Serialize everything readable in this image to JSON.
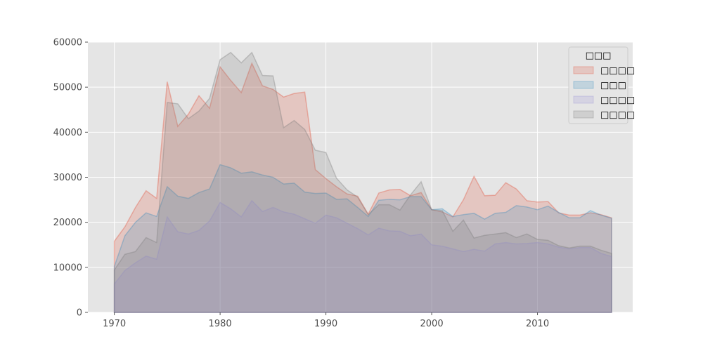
{
  "chart_data": {
    "type": "area",
    "title": "",
    "xlabel": "",
    "ylabel": "",
    "xlim": [
      1967.5,
      2019.0
    ],
    "ylim": [
      0,
      60000
    ],
    "x_ticks": [
      1970,
      1980,
      1990,
      2000,
      2010
    ],
    "y_ticks": [
      0,
      10000,
      20000,
      30000,
      40000,
      50000,
      60000
    ],
    "grid": true,
    "legend": {
      "title": "□□□",
      "position": "top-right"
    },
    "x": [
      1970,
      1971,
      1972,
      1973,
      1974,
      1975,
      1976,
      1977,
      1978,
      1979,
      1980,
      1981,
      1982,
      1983,
      1984,
      1985,
      1986,
      1987,
      1988,
      1989,
      1990,
      1991,
      1992,
      1993,
      1994,
      1995,
      1996,
      1997,
      1998,
      1999,
      2000,
      2001,
      2002,
      2003,
      2004,
      2005,
      2006,
      2007,
      2008,
      2009,
      2010,
      2011,
      2012,
      2013,
      2014,
      2015,
      2016,
      2017
    ],
    "series": [
      {
        "name": "□□□□",
        "color": "#e24a33",
        "values": [
          15800,
          19000,
          23300,
          27000,
          25300,
          51200,
          41300,
          44000,
          48100,
          45300,
          54500,
          51500,
          48800,
          55300,
          50300,
          49500,
          47800,
          48600,
          48900,
          31700,
          29700,
          27900,
          26300,
          25800,
          21800,
          26500,
          27200,
          27300,
          25900,
          26600,
          22800,
          22300,
          21200,
          25000,
          30200,
          25900,
          26000,
          28800,
          27400,
          24800,
          24500,
          24600,
          22100,
          21600,
          21600,
          22100,
          21700,
          21000
        ]
      },
      {
        "name": "□□□",
        "color": "#348abd",
        "values": [
          10200,
          17000,
          20000,
          22100,
          21300,
          27900,
          25800,
          25300,
          26600,
          27400,
          32800,
          32100,
          30900,
          31200,
          30500,
          30000,
          28500,
          28700,
          26700,
          26400,
          26500,
          25100,
          25200,
          23300,
          21300,
          24900,
          25100,
          25000,
          25700,
          25700,
          22800,
          23000,
          21300,
          21700,
          22000,
          20700,
          22000,
          22200,
          23700,
          23400,
          22800,
          23600,
          22200,
          21000,
          21000,
          22600,
          21600,
          20900
        ]
      },
      {
        "name": "□□□□",
        "color": "#988ed5",
        "values": [
          6300,
          9300,
          11000,
          12500,
          11800,
          21200,
          17900,
          17400,
          18200,
          20300,
          24400,
          23000,
          21200,
          24800,
          22400,
          23300,
          22300,
          21800,
          20800,
          19800,
          21600,
          21000,
          19800,
          18600,
          17200,
          18700,
          18100,
          18000,
          17000,
          17400,
          15000,
          14700,
          14100,
          13500,
          14000,
          13600,
          15200,
          15500,
          15200,
          15300,
          15500,
          15200,
          14500,
          14100,
          14400,
          14400,
          13100,
          12400
        ]
      },
      {
        "name": "□□□□",
        "color": "#777777",
        "values": [
          9400,
          12900,
          13500,
          16600,
          15500,
          46600,
          46300,
          43000,
          44700,
          47500,
          56100,
          57700,
          55400,
          57700,
          52600,
          52500,
          41000,
          42600,
          40600,
          36000,
          35500,
          29800,
          27200,
          25600,
          21700,
          23900,
          23900,
          22700,
          26100,
          29000,
          22800,
          22600,
          18000,
          20500,
          16500,
          17100,
          17400,
          17700,
          16600,
          17400,
          16200,
          16000,
          14800,
          14300,
          14700,
          14700,
          13800,
          13100
        ]
      }
    ]
  }
}
